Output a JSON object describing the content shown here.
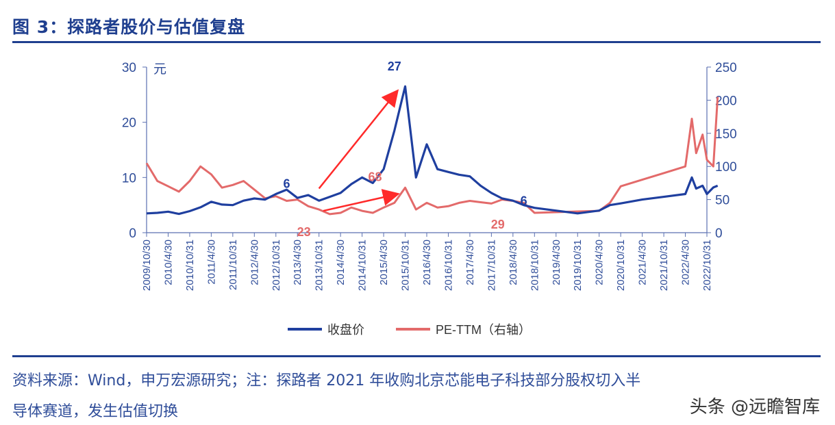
{
  "header": {
    "title": "图 3：探路者股价与估值复盘"
  },
  "footer": {
    "source_line1": "资料来源：Wind，申万宏源研究；注：探路者 2021 年收购北京芯能电子科技部分股权切入半",
    "source_line2": "导体赛道，发生估值切换",
    "watermark": "头条 @远瞻智库"
  },
  "colors": {
    "price": "#1f3f9f",
    "pe": "#e36a6a",
    "annotation_arrow": "#ff2a2a",
    "axis": "#5a6fb0"
  },
  "chart_data": {
    "type": "line",
    "title": "",
    "xlabel": "",
    "ylabel": "元",
    "y2label": "",
    "ylim": [
      0,
      30
    ],
    "y2lim": [
      0,
      250
    ],
    "yticks": [
      0,
      10,
      20,
      30
    ],
    "y2ticks": [
      0,
      50,
      100,
      150,
      200,
      250
    ],
    "x_ticks": [
      "2009/10/30",
      "2010/4/30",
      "2010/10/31",
      "2011/4/30",
      "2011/10/31",
      "2012/4/30",
      "2012/10/31",
      "2013/4/30",
      "2013/10/31",
      "2014/4/30",
      "2014/10/31",
      "2015/4/30",
      "2015/10/31",
      "2016/4/30",
      "2016/10/31",
      "2017/4/30",
      "2017/10/31",
      "2018/4/30",
      "2018/10/31",
      "2019/4/30",
      "2019/10/31",
      "2020/4/30",
      "2020/10/31",
      "2021/4/30",
      "2021/10/31",
      "2022/4/30",
      "2022/10/31"
    ],
    "legend": {
      "placement": "bottom",
      "entries": [
        "收盘价",
        "PE-TTM（右轴）"
      ]
    },
    "series": [
      {
        "name": "收盘价",
        "axis": "left",
        "x": [
          0,
          0.5,
          1,
          1.5,
          2,
          2.5,
          3,
          3.5,
          4,
          4.5,
          5,
          5.5,
          6,
          6.5,
          7,
          7.5,
          8,
          8.5,
          9,
          9.5,
          10,
          10.5,
          11,
          11.5,
          12,
          12.5,
          13,
          13.5,
          14,
          14.5,
          15,
          15.5,
          16,
          16.5,
          17,
          17.5,
          18,
          20,
          21,
          21.5,
          22,
          23,
          24,
          25,
          25.3,
          25.5,
          25.8,
          26,
          26.3,
          26.5
        ],
        "values": [
          3.5,
          3.6,
          3.8,
          3.4,
          3.9,
          4.6,
          5.6,
          5.1,
          5.0,
          5.8,
          6.2,
          6.0,
          7.0,
          7.8,
          6.3,
          6.8,
          5.8,
          6.5,
          7.2,
          8.8,
          10.0,
          9.0,
          11.5,
          18.5,
          26.5,
          10.0,
          16.0,
          11.5,
          11.0,
          10.5,
          10.2,
          8.5,
          7.2,
          6.2,
          5.8,
          5.0,
          4.5,
          3.5,
          4.0,
          5.0,
          5.3,
          6.0,
          6.5,
          7.0,
          10.0,
          8.0,
          8.5,
          7.0,
          8.2,
          8.5
        ]
      },
      {
        "name": "PE-TTM（右轴）",
        "axis": "right",
        "x": [
          0,
          0.5,
          1,
          1.5,
          2,
          2.5,
          3,
          3.5,
          4,
          4.5,
          5,
          5.5,
          6,
          6.5,
          7,
          7.5,
          8,
          8.5,
          9,
          9.5,
          10,
          10.5,
          11,
          11.5,
          12,
          12.5,
          13,
          13.5,
          14,
          14.5,
          15,
          15.5,
          16,
          16.5,
          17,
          17.5,
          18,
          20,
          21,
          21.5,
          22,
          23,
          24,
          25,
          25.3,
          25.5,
          25.8,
          26,
          26.3,
          26.5
        ],
        "values": [
          105,
          78,
          70,
          62,
          78,
          100,
          88,
          68,
          72,
          78,
          65,
          52,
          55,
          48,
          50,
          40,
          35,
          28,
          30,
          38,
          33,
          30,
          38,
          45,
          68,
          35,
          45,
          38,
          40,
          45,
          48,
          46,
          44,
          50,
          48,
          45,
          30,
          32,
          33,
          45,
          70,
          80,
          90,
          100,
          172,
          120,
          148,
          110,
          100,
          205
        ]
      }
    ],
    "annotations": [
      {
        "text": "27",
        "series": "收盘价"
      },
      {
        "text": "6",
        "series": "收盘价"
      },
      {
        "text": "6",
        "series": "收盘价"
      },
      {
        "text": "23",
        "series": "PE-TTM（右轴）"
      },
      {
        "text": "68",
        "series": "PE-TTM（右轴）"
      },
      {
        "text": "29",
        "series": "PE-TTM（右轴）"
      }
    ]
  }
}
